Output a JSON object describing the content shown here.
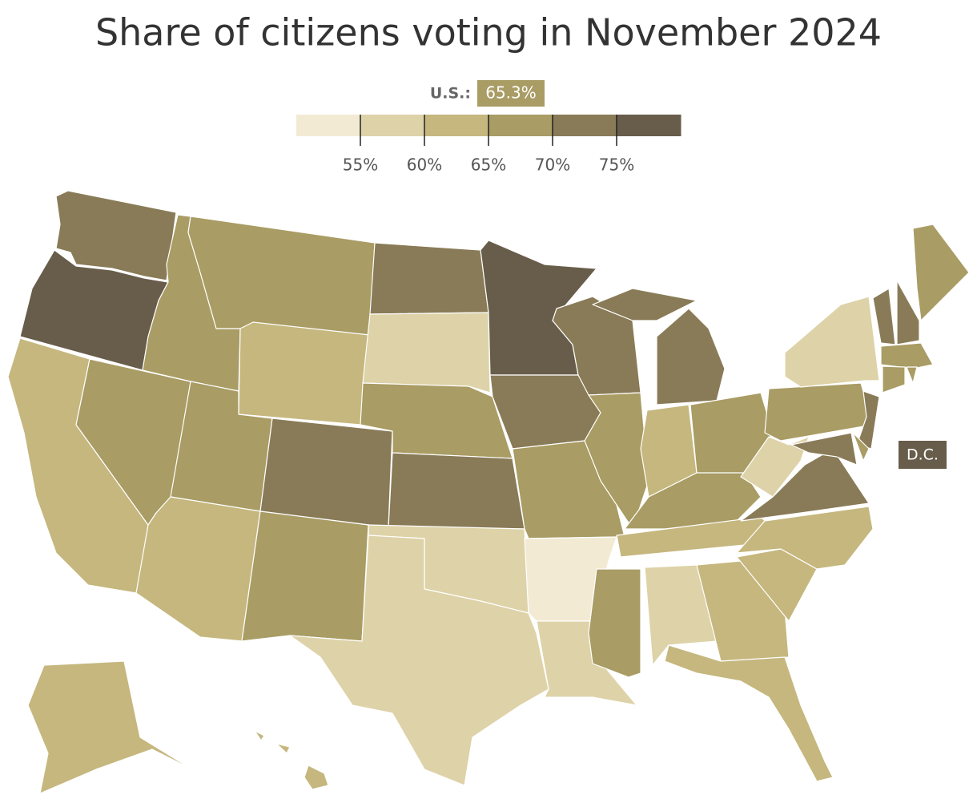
{
  "chart_data": {
    "type": "choropleth",
    "title": "Share of citizens voting in November 2024",
    "legend": {
      "colors": [
        "#f3ead3",
        "#ded2a8",
        "#c5b77e",
        "#a99c64",
        "#897b57",
        "#685d4a"
      ],
      "xlim": [
        50,
        80
      ],
      "xticks": [
        {
          "value": 55,
          "label": "55%"
        },
        {
          "value": 60,
          "label": "60%"
        },
        {
          "value": 65,
          "label": "65%"
        },
        {
          "value": 70,
          "label": "70%"
        },
        {
          "value": 75,
          "label": "75%"
        }
      ]
    },
    "us": {
      "label": "U.S.:",
      "value": 65.3,
      "value_label": "65.3%"
    },
    "dc_label": "D.C."
  }
}
